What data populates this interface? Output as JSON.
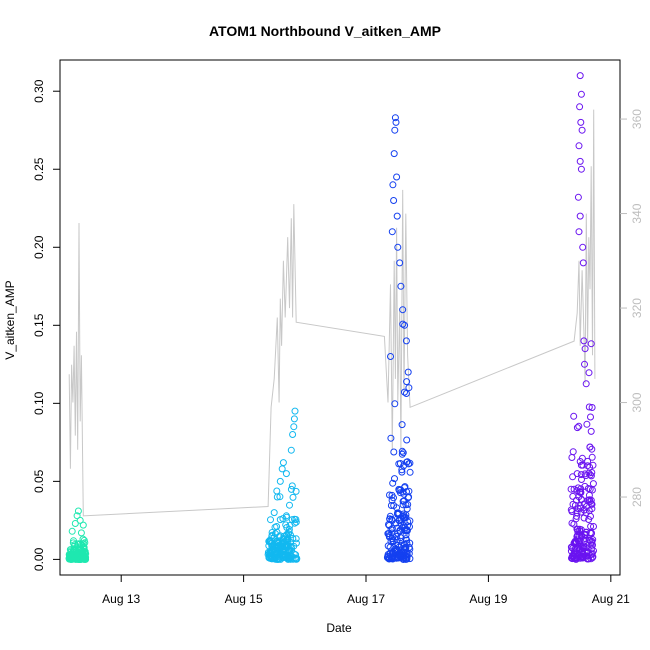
{
  "chart_data": {
    "type": "scatter",
    "title": "ATOM1 Northbound V_aitken_AMP",
    "xlabel": "Date",
    "ylabel": "V_aitken_AMP",
    "x_ticks": [
      "Aug 13",
      "Aug 15",
      "Aug 17",
      "Aug 19",
      "Aug 21"
    ],
    "x_tick_days": [
      13,
      15,
      17,
      19,
      21
    ],
    "xlim": [
      12.0,
      21.15
    ],
    "y_ticks": [
      "0.00",
      "0.05",
      "0.10",
      "0.15",
      "0.20",
      "0.25",
      "0.30"
    ],
    "y_tick_values": [
      0.0,
      0.05,
      0.1,
      0.15,
      0.2,
      0.25,
      0.3
    ],
    "ylim": [
      -0.01,
      0.32
    ],
    "y2_ticks": [
      "280",
      "300",
      "320",
      "340",
      "360"
    ],
    "y2_tick_values": [
      280,
      300,
      320,
      340,
      360
    ],
    "y2lim": [
      263.5,
      372.5
    ],
    "colors": {
      "group1": "#1fe8b0",
      "group2": "#12b8f0",
      "group3": "#1440f0",
      "group4": "#6a14f0",
      "secondary_line": "#c8c8c8"
    },
    "series": [
      {
        "color_key": "group1",
        "x_range": [
          12.15,
          12.42
        ],
        "y_max": 0.031,
        "points": [
          [
            12.3,
            0.031
          ],
          [
            12.28,
            0.028
          ],
          [
            12.33,
            0.025
          ],
          [
            12.25,
            0.023
          ],
          [
            12.38,
            0.022
          ],
          [
            12.2,
            0.018
          ],
          [
            12.35,
            0.017
          ],
          [
            12.22,
            0.012
          ]
        ]
      },
      {
        "color_key": "group2",
        "x_range": [
          15.4,
          15.87
        ],
        "y_max": 0.095,
        "points": [
          [
            15.84,
            0.095
          ],
          [
            15.83,
            0.09
          ],
          [
            15.82,
            0.085
          ],
          [
            15.8,
            0.08
          ],
          [
            15.78,
            0.07
          ],
          [
            15.65,
            0.062
          ],
          [
            15.63,
            0.058
          ],
          [
            15.7,
            0.055
          ],
          [
            15.6,
            0.05
          ],
          [
            15.55,
            0.04
          ],
          [
            15.5,
            0.03
          ]
        ]
      },
      {
        "color_key": "group3",
        "x_range": [
          17.35,
          17.72
        ],
        "y_max": 0.283,
        "points": [
          [
            17.48,
            0.283
          ],
          [
            17.49,
            0.28
          ],
          [
            17.47,
            0.275
          ],
          [
            17.46,
            0.26
          ],
          [
            17.5,
            0.245
          ],
          [
            17.44,
            0.24
          ],
          [
            17.45,
            0.23
          ],
          [
            17.51,
            0.22
          ],
          [
            17.43,
            0.21
          ],
          [
            17.52,
            0.2
          ],
          [
            17.55,
            0.19
          ],
          [
            17.57,
            0.175
          ],
          [
            17.6,
            0.16
          ],
          [
            17.63,
            0.15
          ],
          [
            17.66,
            0.14
          ],
          [
            17.4,
            0.13
          ],
          [
            17.69,
            0.12
          ],
          [
            17.7,
            0.11
          ]
        ]
      },
      {
        "color_key": "group4",
        "x_range": [
          20.35,
          20.72
        ],
        "y_max": 0.31,
        "points": [
          [
            20.5,
            0.31
          ],
          [
            20.52,
            0.298
          ],
          [
            20.49,
            0.29
          ],
          [
            20.51,
            0.28
          ],
          [
            20.53,
            0.275
          ],
          [
            20.48,
            0.265
          ],
          [
            20.5,
            0.255
          ],
          [
            20.52,
            0.25
          ],
          [
            20.47,
            0.232
          ],
          [
            20.5,
            0.22
          ],
          [
            20.48,
            0.21
          ],
          [
            20.54,
            0.2
          ],
          [
            20.55,
            0.19
          ],
          [
            20.56,
            0.14
          ],
          [
            20.58,
            0.135
          ],
          [
            20.57,
            0.125
          ],
          [
            20.68,
            0.082
          ],
          [
            20.66,
            0.072
          ],
          [
            20.45,
            0.055
          ],
          [
            20.4,
            0.045
          ]
        ]
      }
    ],
    "secondary_series": {
      "axis": "right",
      "points": [
        [
          12.15,
          306
        ],
        [
          12.17,
          286
        ],
        [
          12.19,
          308
        ],
        [
          12.21,
          300
        ],
        [
          12.23,
          312
        ],
        [
          12.25,
          293
        ],
        [
          12.27,
          315
        ],
        [
          12.29,
          290
        ],
        [
          12.31,
          338
        ],
        [
          12.33,
          296
        ],
        [
          12.35,
          310
        ],
        [
          12.38,
          276
        ],
        [
          15.4,
          278
        ],
        [
          15.45,
          299
        ],
        [
          15.5,
          305
        ],
        [
          15.55,
          318
        ],
        [
          15.58,
          300
        ],
        [
          15.6,
          322
        ],
        [
          15.62,
          312
        ],
        [
          15.65,
          330
        ],
        [
          15.68,
          318
        ],
        [
          15.7,
          326
        ],
        [
          15.72,
          335
        ],
        [
          15.75,
          320
        ],
        [
          15.78,
          339
        ],
        [
          15.8,
          318
        ],
        [
          15.82,
          342
        ],
        [
          15.86,
          317
        ],
        [
          17.3,
          314
        ],
        [
          17.36,
          300
        ],
        [
          17.4,
          325
        ],
        [
          17.43,
          290
        ],
        [
          17.46,
          330
        ],
        [
          17.48,
          305
        ],
        [
          17.5,
          337
        ],
        [
          17.52,
          300
        ],
        [
          17.55,
          320
        ],
        [
          17.57,
          290
        ],
        [
          17.6,
          345
        ],
        [
          17.62,
          302
        ],
        [
          17.65,
          340
        ],
        [
          17.68,
          310
        ],
        [
          17.72,
          299
        ],
        [
          20.4,
          313
        ],
        [
          20.45,
          319
        ],
        [
          20.48,
          330
        ],
        [
          20.5,
          312
        ],
        [
          20.53,
          328
        ],
        [
          20.56,
          315
        ],
        [
          20.58,
          304
        ],
        [
          20.6,
          340
        ],
        [
          20.62,
          312
        ],
        [
          20.64,
          335
        ],
        [
          20.66,
          324
        ],
        [
          20.68,
          350
        ],
        [
          20.7,
          310
        ],
        [
          20.72,
          362
        ],
        [
          20.74,
          305
        ]
      ]
    }
  }
}
